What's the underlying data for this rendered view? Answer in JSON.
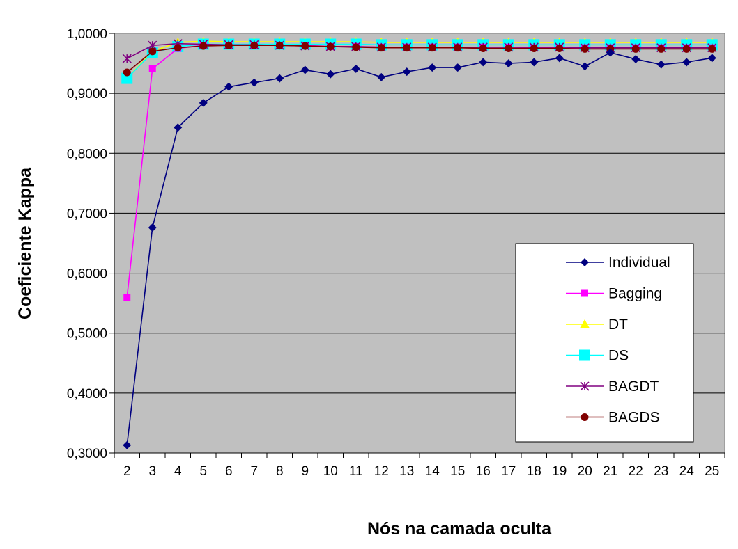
{
  "chart_data": {
    "type": "line",
    "title": "",
    "xlabel": "Nós na camada oculta",
    "ylabel": "Coeficiente Kappa",
    "x": [
      "2",
      "3",
      "4",
      "5",
      "6",
      "7",
      "8",
      "9",
      "10",
      "11",
      "12",
      "13",
      "14",
      "15",
      "16",
      "17",
      "18",
      "19",
      "20",
      "21",
      "22",
      "23",
      "24",
      "25"
    ],
    "ylim": [
      0.3,
      1.0
    ],
    "yticks": [
      "0,3000",
      "0,4000",
      "0,5000",
      "0,6000",
      "0,7000",
      "0,8000",
      "0,9000",
      "1,0000"
    ],
    "grid": "horizontal",
    "legend_position": "right",
    "plot_background": "#c0c0c0",
    "series": [
      {
        "name": "Individual",
        "color": "#000080",
        "marker": "diamond",
        "values": [
          0.313,
          0.676,
          0.843,
          0.884,
          0.911,
          0.918,
          0.925,
          0.939,
          0.932,
          0.941,
          0.927,
          0.936,
          0.943,
          0.943,
          0.952,
          0.95,
          0.952,
          0.959,
          0.945,
          0.968,
          0.957,
          0.948,
          0.952,
          0.959
        ]
      },
      {
        "name": "Bagging",
        "color": "#ff00ff",
        "marker": "square",
        "values": [
          0.56,
          0.941,
          0.975,
          0.98,
          0.98,
          0.98,
          0.98,
          0.98,
          0.978,
          0.978,
          0.977,
          0.977,
          0.977,
          0.977,
          0.977,
          0.977,
          0.976,
          0.976,
          0.976,
          0.976,
          0.976,
          0.976,
          0.976,
          0.976
        ]
      },
      {
        "name": "DT",
        "color": "#ffff00",
        "marker": "triangle",
        "values": [
          0.925,
          0.97,
          0.985,
          0.987,
          0.986,
          0.986,
          0.986,
          0.986,
          0.986,
          0.986,
          0.985,
          0.985,
          0.985,
          0.985,
          0.985,
          0.985,
          0.985,
          0.985,
          0.985,
          0.985,
          0.985,
          0.985,
          0.985,
          0.985
        ]
      },
      {
        "name": "DS",
        "color": "#00ffff",
        "marker": "bigsquare",
        "values": [
          0.925,
          0.968,
          0.978,
          0.982,
          0.982,
          0.982,
          0.982,
          0.982,
          0.982,
          0.982,
          0.981,
          0.981,
          0.981,
          0.981,
          0.981,
          0.981,
          0.981,
          0.981,
          0.981,
          0.981,
          0.981,
          0.981,
          0.981,
          0.981
        ]
      },
      {
        "name": "BAGDT",
        "color": "#800080",
        "marker": "star",
        "values": [
          0.958,
          0.98,
          0.983,
          0.982,
          0.981,
          0.981,
          0.98,
          0.979,
          0.978,
          0.978,
          0.977,
          0.977,
          0.977,
          0.977,
          0.977,
          0.977,
          0.977,
          0.977,
          0.976,
          0.976,
          0.976,
          0.976,
          0.976,
          0.976
        ]
      },
      {
        "name": "BAGDS",
        "color": "#800000",
        "marker": "circle",
        "values": [
          0.935,
          0.97,
          0.976,
          0.979,
          0.98,
          0.98,
          0.98,
          0.979,
          0.978,
          0.977,
          0.976,
          0.976,
          0.976,
          0.976,
          0.975,
          0.975,
          0.975,
          0.975,
          0.974,
          0.974,
          0.974,
          0.974,
          0.974,
          0.974
        ]
      }
    ]
  }
}
